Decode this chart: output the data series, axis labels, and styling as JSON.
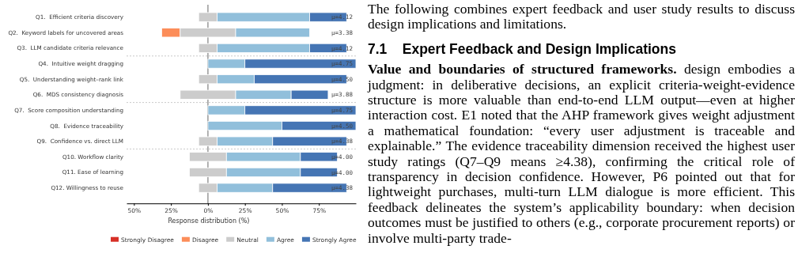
{
  "chart_data": {
    "type": "bar",
    "orientation": "horizontal",
    "xlabel": "Response distribution (%)",
    "categories": [
      "Q1.  Efficient criteria discovery",
      "Q2.  Keyword labels for uncovered areas",
      "Q3.  LLM candidate criteria relevance",
      "Q4.  Intuitive weight dragging",
      "Q5.  Understanding weight–rank link",
      "Q6.  MDS consistency diagnosis",
      "Q7.  Score composition understanding",
      "Q8.  Evidence traceability",
      "Q9.  Confidence vs. direct LLM",
      "Q10. Workflow clarity",
      "Q11. Ease of learning",
      "Q12. Willingness to reuse"
    ],
    "series": [
      {
        "name": "Strongly Disagree",
        "color": "#d73027",
        "values": [
          0,
          0,
          0,
          0,
          0,
          0,
          0,
          0,
          0,
          0,
          0,
          0
        ],
        "base": [
          null,
          null,
          null,
          null,
          null,
          null,
          null,
          null,
          null,
          null,
          null,
          null
        ]
      },
      {
        "name": "Disagree",
        "color": "#fc8d59",
        "values": [
          0,
          12.5,
          0,
          0,
          0,
          0,
          0,
          0,
          0,
          0,
          0,
          0
        ],
        "base": [
          null,
          -31.25,
          null,
          null,
          null,
          null,
          null,
          null,
          null,
          null,
          null,
          null
        ]
      },
      {
        "name": "Neutral",
        "color": "#cccccc",
        "values": [
          12.5,
          37.5,
          12.5,
          0,
          12.5,
          37.5,
          0,
          0,
          12.5,
          25,
          25,
          12.5
        ],
        "base": [
          -6.25,
          -18.75,
          -6.25,
          null,
          -6.25,
          -18.75,
          null,
          null,
          -6.25,
          -12.5,
          -12.5,
          -6.25
        ]
      },
      {
        "name": "Agree",
        "color": "#91bfdb",
        "values": [
          62.5,
          50,
          62.5,
          25,
          25,
          37.5,
          25,
          50,
          37.5,
          50,
          50,
          37.5
        ],
        "base": [
          6.25,
          18.75,
          6.25,
          0,
          6.25,
          18.75,
          0,
          0,
          6.25,
          12.5,
          12.5,
          6.25
        ]
      },
      {
        "name": "Strongly Agree",
        "color": "#4575b4",
        "values": [
          25,
          0,
          25,
          75,
          62.5,
          25,
          75,
          50,
          50,
          25,
          25,
          50
        ],
        "base": [
          68.75,
          null,
          68.75,
          25,
          31.25,
          56.25,
          25,
          50,
          43.75,
          62.5,
          62.5,
          43.75
        ]
      }
    ],
    "xlim": [
      -55,
      100
    ],
    "xticks": [
      {
        "value": -50,
        "label": "50%"
      },
      {
        "value": -25,
        "label": "25%"
      },
      {
        "value": 0,
        "label": "0%"
      },
      {
        "value": 25,
        "label": "25%"
      },
      {
        "value": 50,
        "label": "50%"
      },
      {
        "value": 75,
        "label": "75%"
      }
    ],
    "ref_lines": [
      {
        "axis": "x",
        "value": 0,
        "color": "#999999"
      }
    ],
    "legend": "bottom",
    "annotations": [
      "μ=4.12",
      "μ=3.38",
      "μ=4.12",
      "μ=4.75",
      "μ=4.50",
      "μ=3.88",
      "μ=4.75",
      "μ=4.50",
      "μ=4.38",
      "μ=4.00",
      "μ=4.00",
      "μ=4.38",
      "The following combines expert feedback and user study results to discuss design implications and limitations.",
      "7.1    Expert Feedback and Design Implications",
      "Value and boundaries of structured frameworks.",
      "design embodies a judgment: in deliberative decisions, an explicit criteria-weight-evidence structure is more valuable than end-to-end LLM output—even at higher interaction cost. E1 noted that the AHP framework gives weight adjustment a mathematical foundation: “every user adjustment is traceable and explainable.” The evidence traceability dimension received the highest user study ratings (Q7–Q9 means ≥4.38), confirming the critical role of transparency in decision confidence. However, P6 pointed out that for lightweight purchases, multi-turn LLM dialogue is more efficient. This feedback delineates the system’s applicability boundary: when decision outcomes must be justified to others (e.g., corporate procurement reports) or involve multi-party trade-"
    ]
  }
}
